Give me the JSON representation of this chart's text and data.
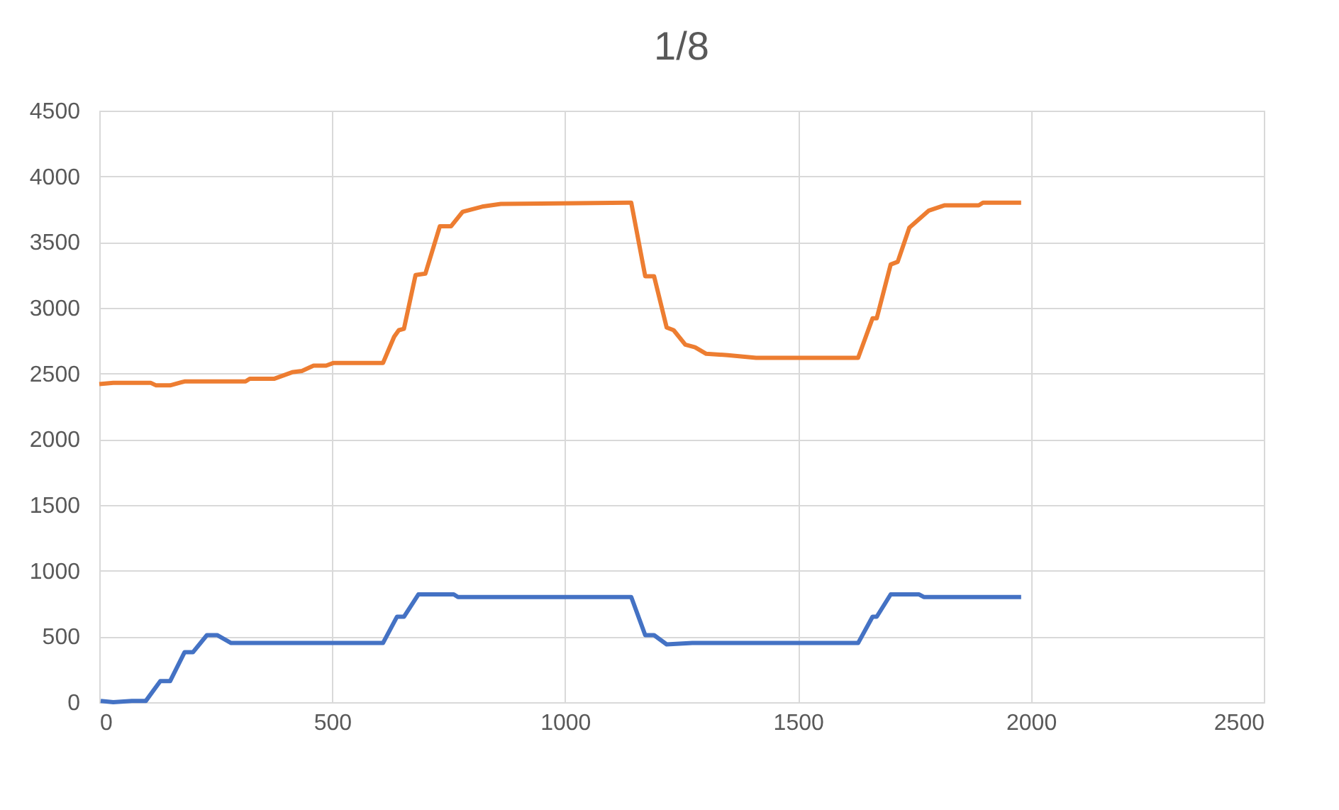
{
  "chart_data": {
    "type": "line",
    "title": "1/8",
    "xlim": [
      0,
      2500
    ],
    "xticks": [
      0,
      500,
      1000,
      1500,
      2000,
      2500
    ],
    "ylim": [
      0,
      4500
    ],
    "yticks": [
      0,
      500,
      1000,
      1500,
      2000,
      2500,
      3000,
      3500,
      4000,
      4500
    ],
    "grid": true,
    "marker": "none",
    "line_style": "solid",
    "series": [
      {
        "color": "#4472c4",
        "x": [
          3,
          30,
          70,
          100,
          131,
          152,
          183,
          201,
          231,
          253,
          283,
          609,
          639,
          654,
          685,
          761,
          770,
          1136,
          1142,
          1172,
          1191,
          1218,
          1273,
          1629,
          1660,
          1669,
          1699,
          1760,
          1770,
          1979
        ],
        "values": [
          10,
          0,
          10,
          10,
          160,
          160,
          380,
          380,
          510,
          510,
          450,
          450,
          650,
          650,
          820,
          820,
          800,
          800,
          800,
          510,
          510,
          440,
          450,
          450,
          650,
          650,
          820,
          820,
          800,
          800
        ]
      },
      {
        "color": "#ed7d31",
        "x": [
          0,
          30,
          110,
          122,
          152,
          183,
          314,
          323,
          375,
          414,
          435,
          460,
          487,
          502,
          609,
          633,
          643,
          654,
          679,
          700,
          731,
          755,
          780,
          822,
          862,
          1136,
          1142,
          1172,
          1191,
          1218,
          1233,
          1258,
          1279,
          1303,
          1349,
          1410,
          1629,
          1660,
          1669,
          1699,
          1714,
          1739,
          1781,
          1815,
          1888,
          1897,
          1979
        ],
        "values": [
          2420,
          2430,
          2430,
          2410,
          2410,
          2440,
          2440,
          2460,
          2460,
          2510,
          2520,
          2560,
          2560,
          2580,
          2580,
          2780,
          2830,
          2840,
          3250,
          3260,
          3620,
          3620,
          3730,
          3770,
          3790,
          3800,
          3800,
          3240,
          3240,
          2850,
          2830,
          2720,
          2700,
          2650,
          2640,
          2620,
          2620,
          2920,
          2920,
          3330,
          3350,
          3610,
          3740,
          3780,
          3780,
          3800,
          3800
        ]
      }
    ]
  }
}
